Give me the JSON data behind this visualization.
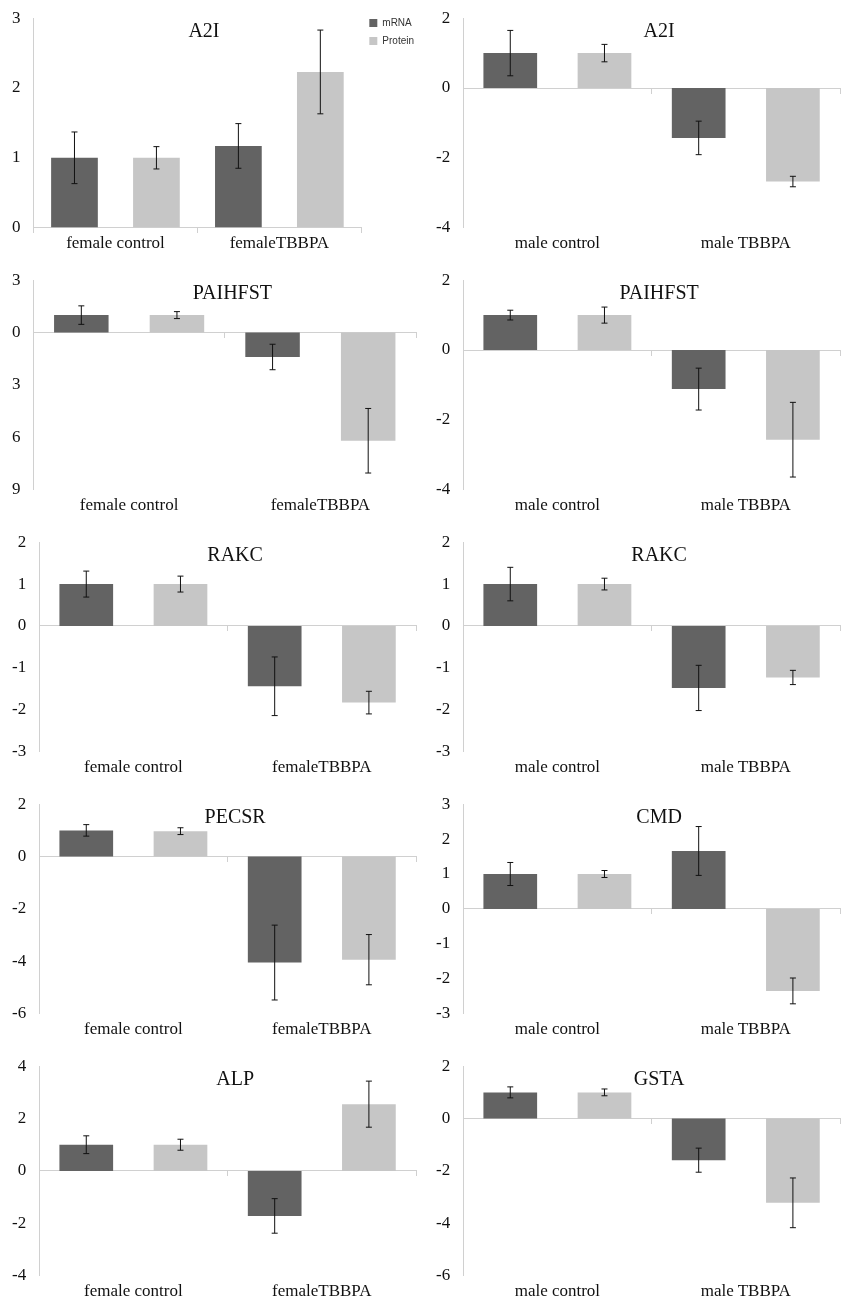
{
  "chart_data": [
    {
      "type": "bar",
      "title": "A2I",
      "categories": [
        "female control",
        "femaleTBBPA"
      ],
      "ylim": [
        0,
        3
      ],
      "yticks": [
        0,
        1,
        2,
        3
      ],
      "legend": "top right",
      "series": [
        {
          "name": "mRNA",
          "color": "#636363",
          "values": [
            1,
            1.17
          ],
          "errors": [
            0.37,
            0.32
          ]
        },
        {
          "name": "Protein",
          "color": "#c6c6c6",
          "values": [
            1,
            2.23
          ],
          "errors": [
            0.16,
            0.6
          ]
        }
      ]
    },
    {
      "type": "bar",
      "title": "A2I",
      "categories": [
        "male control",
        "male TBBPA"
      ],
      "ylim": [
        -4,
        2
      ],
      "yticks": [
        -4,
        -2,
        0,
        2
      ],
      "series": [
        {
          "color": "#636363",
          "values": [
            1,
            -1.43
          ],
          "errors": [
            0.65,
            0.48
          ]
        },
        {
          "color": "#c6c6c6",
          "values": [
            1,
            -2.68
          ],
          "errors": [
            0.25,
            0.15
          ]
        }
      ]
    },
    {
      "type": "bar",
      "title": "PAIHFST",
      "categories": [
        "female control",
        "femaleTBBPA"
      ],
      "ylim": [
        -9,
        3
      ],
      "yticks": [
        {
          "value": -9,
          "label": "9"
        },
        {
          "value": -6,
          "label": "6"
        },
        {
          "value": -3,
          "label": "3"
        },
        0,
        3
      ],
      "series": [
        {
          "color": "#636363",
          "values": [
            1,
            -1.4
          ],
          "errors": [
            0.53,
            0.73
          ]
        },
        {
          "color": "#c6c6c6",
          "values": [
            1,
            -6.2
          ],
          "errors": [
            0.2,
            1.85
          ]
        }
      ]
    },
    {
      "type": "bar",
      "title": "PAIHFST",
      "categories": [
        "male control",
        "male TBBPA"
      ],
      "ylim": [
        -4,
        2
      ],
      "yticks": [
        -4,
        -2,
        0,
        2
      ],
      "series": [
        {
          "color": "#636363",
          "values": [
            1,
            -1.12
          ],
          "errors": [
            0.14,
            0.6
          ]
        },
        {
          "color": "#c6c6c6",
          "values": [
            1,
            -2.57
          ],
          "errors": [
            0.23,
            1.07
          ]
        }
      ]
    },
    {
      "type": "bar",
      "title": "RAKC",
      "categories": [
        "female control",
        "femaleTBBPA"
      ],
      "ylim": [
        -3,
        2
      ],
      "yticks": [
        -3,
        -2,
        -1,
        0,
        1,
        2
      ],
      "series": [
        {
          "color": "#636363",
          "values": [
            1,
            -1.44
          ],
          "errors": [
            0.31,
            0.7
          ]
        },
        {
          "color": "#c6c6c6",
          "values": [
            1,
            -1.83
          ],
          "errors": [
            0.19,
            0.27
          ]
        }
      ]
    },
    {
      "type": "bar",
      "title": "RAKC",
      "categories": [
        "male control",
        "male TBBPA"
      ],
      "ylim": [
        -3,
        2
      ],
      "yticks": [
        -3,
        -2,
        -1,
        0,
        1,
        2
      ],
      "series": [
        {
          "color": "#636363",
          "values": [
            1,
            -1.48
          ],
          "errors": [
            0.4,
            0.54
          ]
        },
        {
          "color": "#c6c6c6",
          "values": [
            1,
            -1.23
          ],
          "errors": [
            0.14,
            0.17
          ]
        }
      ]
    },
    {
      "type": "bar",
      "title": "PECSR",
      "categories": [
        "female control",
        "femaleTBBPA"
      ],
      "ylim": [
        -6,
        2
      ],
      "yticks": [
        -6,
        -4,
        -2,
        0,
        2
      ],
      "series": [
        {
          "color": "#636363",
          "values": [
            1,
            -4.05
          ],
          "errors": [
            0.22,
            1.43
          ]
        },
        {
          "color": "#c6c6c6",
          "values": [
            0.97,
            -3.94
          ],
          "errors": [
            0.13,
            0.96
          ]
        }
      ]
    },
    {
      "type": "bar",
      "title": "CMD",
      "categories": [
        "male control",
        "male TBBPA"
      ],
      "ylim": [
        -3,
        3
      ],
      "yticks": [
        -3,
        -2,
        -1,
        0,
        1,
        2,
        3
      ],
      "series": [
        {
          "color": "#636363",
          "values": [
            1,
            1.66
          ],
          "errors": [
            0.33,
            0.7
          ]
        },
        {
          "color": "#c6c6c6",
          "values": [
            1,
            -2.35
          ],
          "errors": [
            0.1,
            0.37
          ]
        }
      ]
    },
    {
      "type": "bar",
      "title": "ALP",
      "categories": [
        "female control",
        "femaleTBBPA"
      ],
      "ylim": [
        -4,
        4
      ],
      "yticks": [
        -4,
        -2,
        0,
        2,
        4
      ],
      "series": [
        {
          "color": "#636363",
          "values": [
            1,
            -1.72
          ],
          "errors": [
            0.34,
            0.66
          ]
        },
        {
          "color": "#c6c6c6",
          "values": [
            1,
            2.55
          ],
          "errors": [
            0.21,
            0.88
          ]
        }
      ]
    },
    {
      "type": "bar",
      "title": "GSTA",
      "categories": [
        "male control",
        "male TBBPA"
      ],
      "ylim": [
        -6,
        2
      ],
      "yticks": [
        -6,
        -4,
        -2,
        0,
        2
      ],
      "series": [
        {
          "color": "#636363",
          "values": [
            1,
            -1.59
          ],
          "errors": [
            0.21,
            0.46
          ]
        },
        {
          "color": "#c6c6c6",
          "values": [
            1,
            -3.22
          ],
          "errors": [
            0.13,
            0.95
          ]
        }
      ]
    }
  ]
}
